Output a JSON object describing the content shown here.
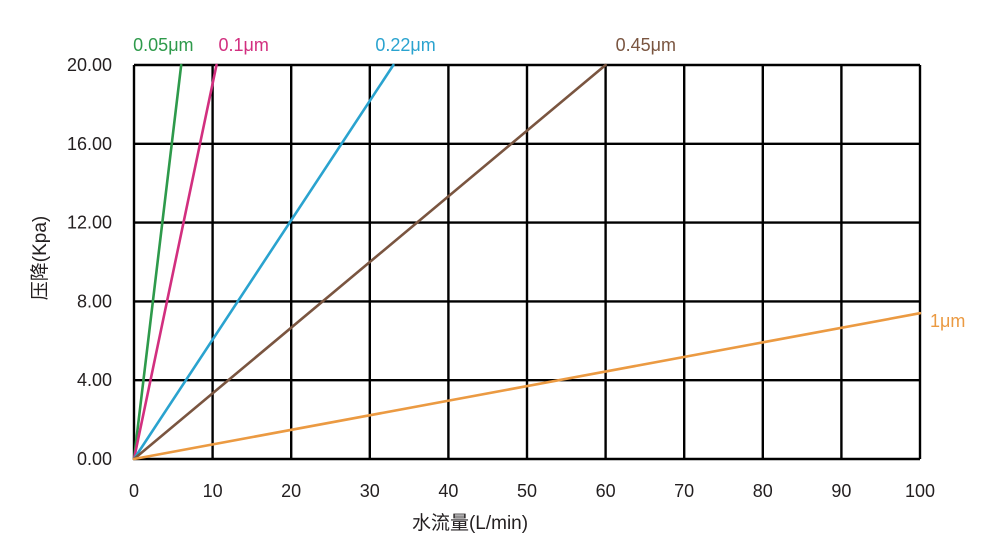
{
  "chart_data": {
    "type": "line",
    "title": "",
    "xlabel": "水流量(L/min)",
    "ylabel": "压降(Kpa)",
    "xlim": [
      0,
      100
    ],
    "ylim": [
      0,
      20
    ],
    "x_ticks": [
      "0",
      "10",
      "20",
      "30",
      "40",
      "50",
      "60",
      "70",
      "80",
      "90",
      "100"
    ],
    "y_ticks": [
      "0.00",
      "4.00",
      "8.00",
      "12.00",
      "16.00",
      "20.00"
    ],
    "grid": true,
    "series": [
      {
        "name": "0.05μm",
        "color": "#2e9a4b",
        "x": [
          0,
          6
        ],
        "y": [
          0,
          20
        ]
      },
      {
        "name": "0.1μm",
        "color": "#d22f7f",
        "x": [
          0,
          10.5
        ],
        "y": [
          0,
          20
        ]
      },
      {
        "name": "0.22μm",
        "color": "#2aa3cf",
        "x": [
          0,
          33
        ],
        "y": [
          0,
          20
        ]
      },
      {
        "name": "0.45μm",
        "color": "#7a5540",
        "x": [
          0,
          60
        ],
        "y": [
          0,
          20
        ]
      },
      {
        "name": "1μm",
        "color": "#eb9a42",
        "x": [
          0,
          100
        ],
        "y": [
          0,
          7.4
        ]
      }
    ]
  }
}
